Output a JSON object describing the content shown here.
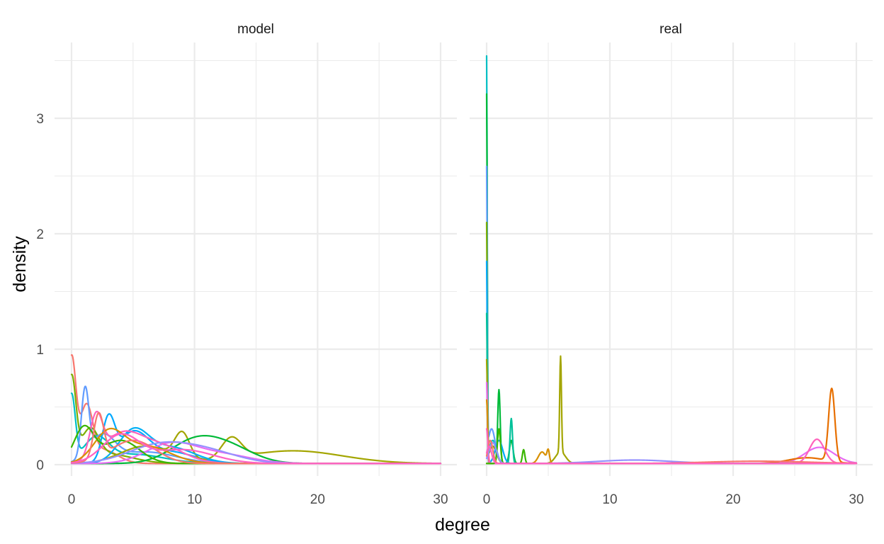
{
  "chart_data": {
    "type": "line",
    "xlabel": "degree",
    "ylabel": "density",
    "xlim": [
      0,
      30
    ],
    "ylim": [
      -0.05,
      3.55
    ],
    "x_ticks": [
      0,
      10,
      20,
      30
    ],
    "y_ticks": [
      0,
      1,
      2,
      3
    ],
    "grid": true,
    "legend": "none",
    "panels": [
      {
        "name": "model",
        "series": [
          {
            "color": "#F8766D",
            "peaks": [
              {
                "x": 0,
                "h": 0.9,
                "w": 0.35
              },
              {
                "x": 1.2,
                "h": 0.45,
                "w": 0.5
              },
              {
                "x": 2.5,
                "h": 0.12,
                "w": 1.2
              }
            ]
          },
          {
            "color": "#7CAE00",
            "peaks": [
              {
                "x": 0,
                "h": 0.72,
                "w": 0.35
              },
              {
                "x": 1.5,
                "h": 0.25,
                "w": 0.7
              },
              {
                "x": 3,
                "h": 0.08,
                "w": 2
              }
            ]
          },
          {
            "color": "#00BFC4",
            "peaks": [
              {
                "x": 0,
                "h": 0.57,
                "w": 0.3
              },
              {
                "x": 2,
                "h": 0.2,
                "w": 1
              },
              {
                "x": 5,
                "h": 0.08,
                "w": 2.5
              }
            ]
          },
          {
            "color": "#619CFF",
            "peaks": [
              {
                "x": 1.1,
                "h": 0.57,
                "w": 0.3
              },
              {
                "x": 2.5,
                "h": 0.22,
                "w": 1
              },
              {
                "x": 6,
                "h": 0.1,
                "w": 2.5
              }
            ]
          },
          {
            "color": "#00A9FF",
            "peaks": [
              {
                "x": 3,
                "h": 0.36,
                "w": 0.5
              },
              {
                "x": 5,
                "h": 0.25,
                "w": 1.2
              },
              {
                "x": 8,
                "h": 0.1,
                "w": 2
              }
            ]
          },
          {
            "color": "#A3A500",
            "peaks": [
              {
                "x": 9,
                "h": 0.22,
                "w": 0.6
              },
              {
                "x": 6,
                "h": 0.15,
                "w": 2
              },
              {
                "x": 13,
                "h": 0.18,
                "w": 0.8
              },
              {
                "x": 18,
                "h": 0.11,
                "w": 4
              }
            ]
          },
          {
            "color": "#00BA38",
            "peaks": [
              {
                "x": 10,
                "h": 0.19,
                "w": 2
              },
              {
                "x": 13,
                "h": 0.12,
                "w": 2
              }
            ]
          },
          {
            "color": "#00B0F6",
            "peaks": [
              {
                "x": 5,
                "h": 0.26,
                "w": 1.2
              },
              {
                "x": 8,
                "h": 0.14,
                "w": 2
              }
            ]
          },
          {
            "color": "#E76BF3",
            "peaks": [
              {
                "x": 8,
                "h": 0.16,
                "w": 2
              },
              {
                "x": 12,
                "h": 0.08,
                "w": 2.5
              }
            ]
          },
          {
            "color": "#FF62BC",
            "peaks": [
              {
                "x": 2,
                "h": 0.35,
                "w": 0.5
              },
              {
                "x": 4,
                "h": 0.22,
                "w": 1.5
              },
              {
                "x": 7,
                "h": 0.16,
                "w": 2
              }
            ]
          },
          {
            "color": "#D89000",
            "peaks": [
              {
                "x": 3,
                "h": 0.25,
                "w": 1.2
              },
              {
                "x": 6,
                "h": 0.15,
                "w": 2
              }
            ]
          },
          {
            "color": "#39B600",
            "peaks": [
              {
                "x": 1,
                "h": 0.3,
                "w": 0.8
              },
              {
                "x": 4,
                "h": 0.2,
                "w": 1.5
              }
            ]
          },
          {
            "color": "#9590FF",
            "peaks": [
              {
                "x": 7,
                "h": 0.15,
                "w": 2.5
              },
              {
                "x": 11,
                "h": 0.1,
                "w": 2.5
              }
            ]
          },
          {
            "color": "#F8766D",
            "peaks": [
              {
                "x": 2.2,
                "h": 0.38,
                "w": 0.4
              },
              {
                "x": 5,
                "h": 0.2,
                "w": 1.8
              }
            ]
          },
          {
            "color": "#FF61C3",
            "peaks": [
              {
                "x": 4,
                "h": 0.24,
                "w": 1.5
              },
              {
                "x": 9,
                "h": 0.12,
                "w": 2.5
              }
            ]
          }
        ]
      },
      {
        "name": "real",
        "series": [
          {
            "color": "#00BFC4",
            "peaks": [
              {
                "x": 0,
                "h": 3.48,
                "w": 0.05
              },
              {
                "x": 0.5,
                "h": 0.2,
                "w": 0.3
              }
            ]
          },
          {
            "color": "#00BA38",
            "peaks": [
              {
                "x": 0,
                "h": 3.2,
                "w": 0.05
              },
              {
                "x": 1,
                "h": 0.64,
                "w": 0.1
              },
              {
                "x": 2,
                "h": 0.2,
                "w": 0.15
              }
            ]
          },
          {
            "color": "#619CFF",
            "peaks": [
              {
                "x": 0,
                "h": 2.45,
                "w": 0.05
              },
              {
                "x": 0.4,
                "h": 0.3,
                "w": 0.3
              }
            ]
          },
          {
            "color": "#7CAE00",
            "peaks": [
              {
                "x": 0,
                "h": 2.05,
                "w": 0.05
              },
              {
                "x": 0.5,
                "h": 0.15,
                "w": 0.3
              }
            ]
          },
          {
            "color": "#00A9FF",
            "peaks": [
              {
                "x": 0,
                "h": 1.75,
                "w": 0.05
              },
              {
                "x": 1,
                "h": 0.2,
                "w": 0.3
              }
            ]
          },
          {
            "color": "#00C19A",
            "peaks": [
              {
                "x": 0,
                "h": 1.3,
                "w": 0.05
              },
              {
                "x": 2,
                "h": 0.39,
                "w": 0.1
              }
            ]
          },
          {
            "color": "#A3A500",
            "peaks": [
              {
                "x": 0,
                "h": 0.9,
                "w": 0.06
              },
              {
                "x": 6,
                "h": 0.83,
                "w": 0.07
              },
              {
                "x": 6,
                "h": 0.1,
                "w": 0.4
              }
            ]
          },
          {
            "color": "#E76BF3",
            "peaks": [
              {
                "x": 0,
                "h": 0.7,
                "w": 0.06
              },
              {
                "x": 27,
                "h": 0.14,
                "w": 1.2
              }
            ]
          },
          {
            "color": "#D89000",
            "peaks": [
              {
                "x": 0,
                "h": 0.55,
                "w": 0.08
              },
              {
                "x": 4.5,
                "h": 0.1,
                "w": 0.3
              },
              {
                "x": 5,
                "h": 0.1,
                "w": 0.1
              }
            ]
          },
          {
            "color": "#E76F00",
            "peaks": [
              {
                "x": 28,
                "h": 0.63,
                "w": 0.25
              },
              {
                "x": 26,
                "h": 0.05,
                "w": 1.5
              }
            ]
          },
          {
            "color": "#FF62BC",
            "peaks": [
              {
                "x": 26.8,
                "h": 0.21,
                "w": 0.6
              },
              {
                "x": 0,
                "h": 0.3,
                "w": 0.1
              }
            ]
          },
          {
            "color": "#39B600",
            "peaks": [
              {
                "x": 1,
                "h": 0.3,
                "w": 0.12
              },
              {
                "x": 3,
                "h": 0.12,
                "w": 0.1
              }
            ]
          },
          {
            "color": "#9590FF",
            "peaks": [
              {
                "x": 0.5,
                "h": 0.18,
                "w": 0.3
              },
              {
                "x": 12,
                "h": 0.03,
                "w": 3
              }
            ]
          },
          {
            "color": "#F8766D",
            "peaks": [
              {
                "x": 0.3,
                "h": 0.2,
                "w": 0.2
              },
              {
                "x": 22,
                "h": 0.02,
                "w": 4
              }
            ]
          },
          {
            "color": "#FF61C3",
            "peaks": [
              {
                "x": 0.2,
                "h": 0.15,
                "w": 0.2
              }
            ]
          }
        ]
      }
    ]
  }
}
